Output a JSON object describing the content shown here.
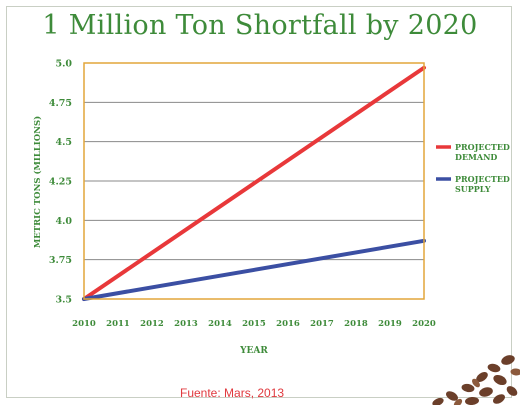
{
  "chart_data": {
    "type": "line",
    "title": "1 Million Ton Shortfall by 2020",
    "xlabel": "YEAR",
    "ylabel": "METRIC TONS (MILLIONS)",
    "x": [
      2010,
      2011,
      2012,
      2013,
      2014,
      2015,
      2016,
      2017,
      2018,
      2019,
      2020
    ],
    "x_tick_labels": [
      "2010",
      "2011",
      "2012",
      "2013",
      "2014",
      "2015",
      "2016",
      "2017",
      "2018",
      "2019",
      "2020"
    ],
    "y_tick_labels": [
      "3.5",
      "3.75",
      "4.0",
      "4.25",
      "4.5",
      "4.75",
      "5.0"
    ],
    "y_ticks": [
      3.5,
      3.75,
      4.0,
      4.25,
      4.5,
      4.75,
      5.0
    ],
    "xlim": [
      2010,
      2020
    ],
    "ylim": [
      3.5,
      5.0
    ],
    "grid": true,
    "legend_position": "right",
    "series": [
      {
        "name": "PROJECTED DEMAND",
        "legend_lines": [
          "PROJECTED",
          "DEMAND"
        ],
        "color": "#e8383a",
        "x": [
          2010,
          2020
        ],
        "y": [
          3.5,
          4.97
        ]
      },
      {
        "name": "PROJECTED SUPPLY",
        "legend_lines": [
          "PROJECTED",
          "SUPPLY"
        ],
        "color": "#3b4fa3",
        "x": [
          2010,
          2020
        ],
        "y": [
          3.5,
          3.87
        ]
      }
    ]
  },
  "source": "Fuente: Mars, 2013",
  "colors": {
    "title": "#3e8b3a",
    "axis_text": "#3e8b3a",
    "plot_border": "#e2a63a",
    "gridline": "#8a8a8a",
    "source_text": "#e0393e"
  },
  "decoration": {
    "icon": "cocoa-beans-icon"
  }
}
